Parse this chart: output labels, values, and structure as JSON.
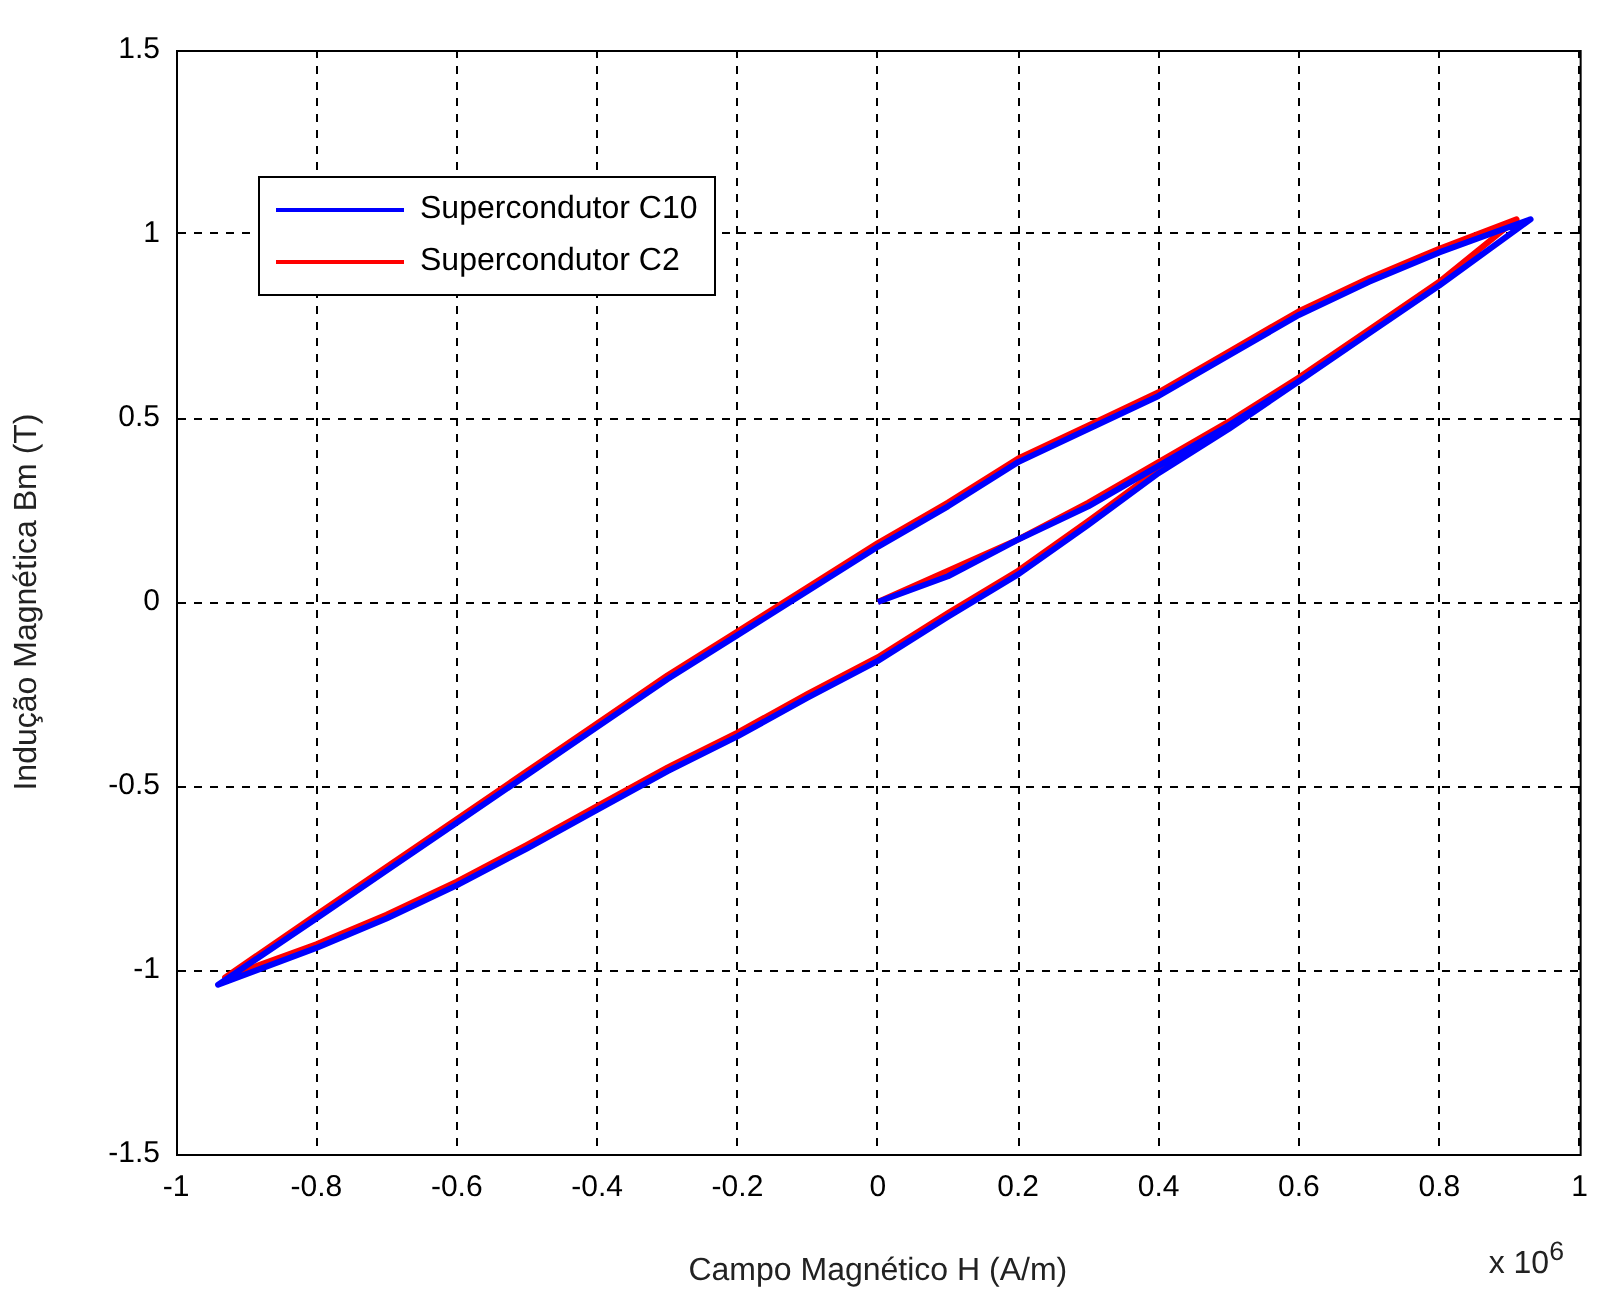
{
  "chart_data": {
    "type": "line",
    "xlabel": "Campo Magnético H (A/m)",
    "ylabel": "Indução Magnética Bm (T)",
    "annotations": [
      "x 10$^{6}$"
    ],
    "xlim": [
      -1,
      1
    ],
    "xticks": [
      -1,
      -0.8,
      -0.6,
      -0.4,
      -0.2,
      0,
      0.2,
      0.4,
      0.6,
      0.8,
      1
    ],
    "ylim": [
      -1.5,
      1.5
    ],
    "yticks": [
      -1.5,
      -1,
      -0.5,
      0,
      0.5,
      1,
      1.5
    ],
    "grid": true,
    "legend": "top left",
    "marker": "none",
    "line_style": "solid",
    "series": [
      {
        "name": "Supercondutor C10",
        "color": "#0000ff",
        "x": [
          0,
          0.1,
          0.2,
          0.3,
          0.4,
          0.5,
          0.6,
          0.7,
          0.8,
          0.93,
          0.8,
          0.7,
          0.6,
          0.5,
          0.4,
          0.3,
          0.2,
          0.1,
          0,
          -0.1,
          -0.2,
          -0.3,
          -0.4,
          -0.5,
          -0.6,
          -0.7,
          -0.8,
          -0.94,
          -0.8,
          -0.7,
          -0.6,
          -0.5,
          -0.4,
          -0.3,
          -0.2,
          -0.1,
          0,
          0.1,
          0.2,
          0.3,
          0.4,
          0.5,
          0.6,
          0.7,
          0.8,
          0.93
        ],
        "values": [
          0,
          0.07,
          0.17,
          0.26,
          0.37,
          0.48,
          0.6,
          0.73,
          0.86,
          1.04,
          0.95,
          0.87,
          0.78,
          0.67,
          0.56,
          0.47,
          0.38,
          0.26,
          0.15,
          0.03,
          -0.09,
          -0.21,
          -0.34,
          -0.47,
          -0.6,
          -0.73,
          -0.86,
          -1.04,
          -0.94,
          -0.86,
          -0.77,
          -0.67,
          -0.565,
          -0.46,
          -0.365,
          -0.26,
          -0.16,
          -0.04,
          0.075,
          0.21,
          0.35,
          0.47,
          0.6,
          0.73,
          0.86,
          1.04
        ]
      },
      {
        "name": "Supercondutor C2",
        "color": "#ff0000",
        "x": [
          0,
          0.1,
          0.2,
          0.3,
          0.4,
          0.5,
          0.6,
          0.7,
          0.8,
          0.91,
          0.8,
          0.7,
          0.6,
          0.5,
          0.4,
          0.3,
          0.2,
          0.1,
          0,
          -0.1,
          -0.2,
          -0.3,
          -0.4,
          -0.5,
          -0.6,
          -0.7,
          -0.8,
          -0.93,
          -0.8,
          -0.7,
          -0.6,
          -0.5,
          -0.4,
          -0.3,
          -0.2,
          -0.1,
          0,
          0.1,
          0.2,
          0.3,
          0.4,
          0.5,
          0.6,
          0.7,
          0.8,
          0.91
        ],
        "values": [
          0,
          null,
          0.17,
          0.27,
          0.38,
          0.49,
          0.61,
          0.74,
          0.87,
          1.04,
          0.96,
          0.88,
          0.79,
          0.68,
          0.57,
          0.48,
          0.39,
          0.27,
          0.16,
          0.04,
          -0.08,
          -0.2,
          -0.33,
          -0.46,
          -0.59,
          -0.72,
          -0.85,
          -1.02,
          -0.93,
          -0.85,
          -0.76,
          -0.66,
          -0.555,
          -0.45,
          -0.355,
          -0.25,
          -0.15,
          -0.03,
          0.085,
          0.22,
          0.36,
          0.48,
          0.61,
          0.74,
          0.87,
          1.04
        ]
      }
    ]
  }
}
